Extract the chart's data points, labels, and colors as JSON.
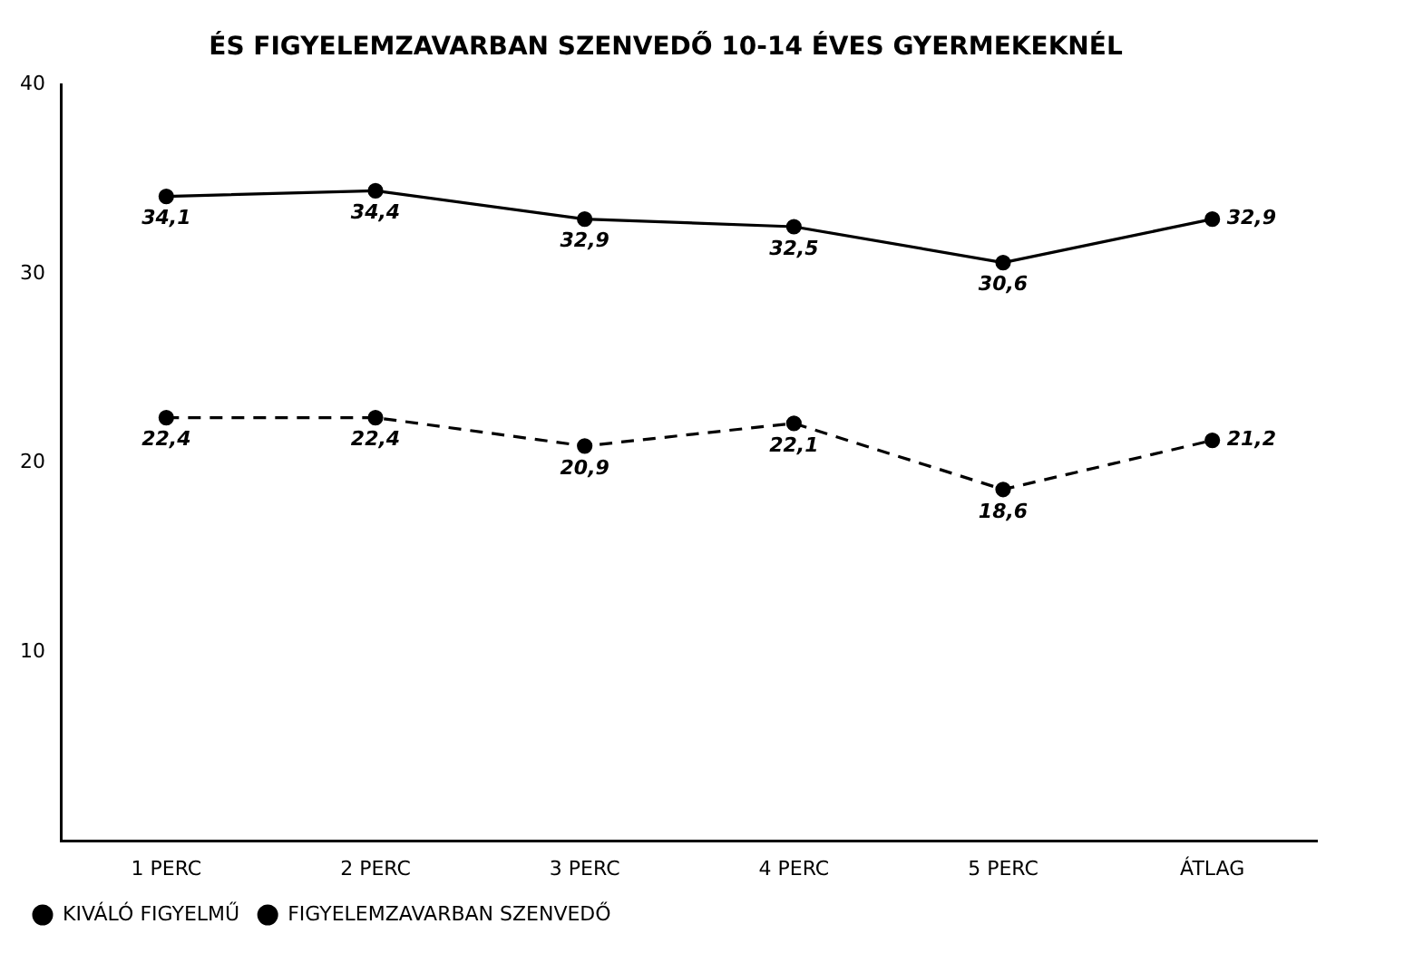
{
  "chart_data": {
    "type": "line",
    "title": "ÉS FIGYELEMZAVARBAN SZENVEDŐ 10-14 ÉVES GYERMEKEKNÉL",
    "categories": [
      "1 PERC",
      "2 PERC",
      "3 PERC",
      "4 PERC",
      "5 PERC",
      "ÁTLAG"
    ],
    "series": [
      {
        "name": "KIVÁLÓ FIGYELMŰ",
        "color": "#000000",
        "line_style": "solid",
        "values": [
          34.1,
          34.4,
          32.9,
          32.5,
          30.6,
          32.9
        ],
        "value_labels": [
          "34,1",
          "34,4",
          "32,9",
          "32,5",
          "30,6",
          "32,9"
        ]
      },
      {
        "name": "FIGYELEMZAVARBAN SZENVEDŐ",
        "color": "#000000",
        "line_style": "dashed",
        "values": [
          22.4,
          22.4,
          20.9,
          22.1,
          18.6,
          21.2
        ],
        "value_labels": [
          "22,4",
          "22,4",
          "20,9",
          "22,1",
          "18,6",
          "21,2"
        ]
      }
    ],
    "ylim": [
      0,
      40
    ],
    "yticks": [
      10,
      20,
      30,
      40
    ],
    "grid": false,
    "legend": "bottom left",
    "marker": "circle"
  }
}
